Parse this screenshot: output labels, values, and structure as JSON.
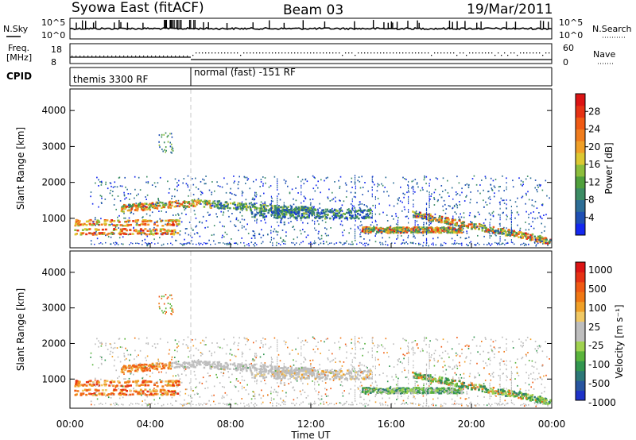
{
  "header": {
    "station": "Syowa East (fitACF)",
    "beam": "Beam 03",
    "date": "19/Mar/2011"
  },
  "time_axis": {
    "label": "Time UT",
    "ticks": [
      "00:00",
      "04:00",
      "08:00",
      "12:00",
      "16:00",
      "20:00",
      "00:00"
    ],
    "range_hours": [
      0,
      24
    ]
  },
  "top_panels": {
    "noise": {
      "left_label": "N.Sky",
      "right_label": "N.Search",
      "left_ticks": [
        "10^5",
        "10^0"
      ],
      "right_ticks": [
        "10^5",
        "10^0"
      ]
    },
    "freq": {
      "left_label_1": "Freq.",
      "left_label_2": "[MHz]",
      "right_label": "Nave",
      "left_ticks": [
        "18",
        "8"
      ],
      "right_ticks": [
        "60",
        "0"
      ]
    },
    "cpid": {
      "label": "CPID",
      "segments": [
        {
          "start_hour": 0,
          "end_hour": 6,
          "text": "themis 3300 RF"
        },
        {
          "start_hour": 6,
          "end_hour": 24,
          "text": "normal (fast) -151 RF"
        }
      ]
    }
  },
  "chart_data": [
    {
      "type": "heatmap",
      "title": "",
      "xlabel": "Time UT",
      "ylabel": "Slant Range [km]",
      "xlim": [
        0,
        24
      ],
      "ylim": [
        180,
        4600
      ],
      "yticks": [
        "1000",
        "2000",
        "3000",
        "4000"
      ],
      "colorbar": {
        "label": "Power [dB]",
        "ticks": [
          "4",
          "8",
          "12",
          "16",
          "20",
          "24",
          "28"
        ],
        "range": [
          0,
          32
        ],
        "colors": [
          "#1428f0",
          "#1e4fb4",
          "#2d6e96",
          "#3c8c64",
          "#50a03c",
          "#8cbe3c",
          "#dcc832",
          "#f0a028",
          "#f07d1e",
          "#f05a14",
          "#e63214",
          "#dc1414"
        ]
      }
    },
    {
      "type": "heatmap",
      "title": "",
      "xlabel": "Time UT",
      "ylabel": "Slant Range [km]",
      "xlim": [
        0,
        24
      ],
      "ylim": [
        180,
        4600
      ],
      "yticks": [
        "1000",
        "2000",
        "3000",
        "4000"
      ],
      "colorbar": {
        "label": "Velocity [m s⁻¹]",
        "ticks": [
          "1000",
          "500",
          "100",
          "25",
          "-25",
          "-100",
          "-500",
          "-1000"
        ],
        "colors": [
          "#1e32c8",
          "#2855a0",
          "#2d7878",
          "#329650",
          "#5ab43c",
          "#a0d250",
          "#bebebe",
          "#bebebe",
          "#f0c864",
          "#f0a028",
          "#f07814",
          "#f05a14",
          "#e63214",
          "#dc1414"
        ]
      }
    }
  ],
  "colors": {
    "axis": "#000000",
    "gray_scatter": "#bebebe",
    "divider": "#cccccc"
  }
}
